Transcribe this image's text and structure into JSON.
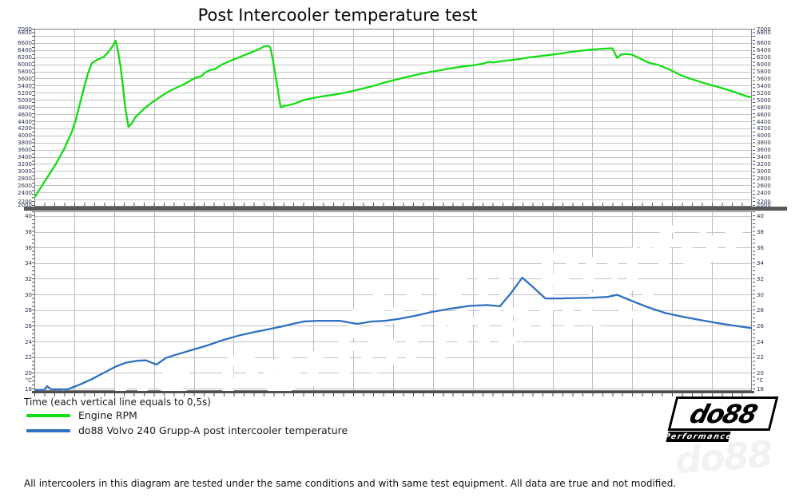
{
  "title": "Post Intercooler temperature test",
  "x_axis_note": "Time (each vertical line equals to 0,5s)",
  "footer_disclaimer": "All intercoolers in this diagram are tested under the same conditions and with same test equipment. All data are true and not modified.",
  "legend": [
    {
      "label": "Engine RPM",
      "color": "#12de12"
    },
    {
      "label": "do88 Volvo 240 Grupp-A post intercooler temperature",
      "color": "#2f70c2"
    }
  ],
  "logo": {
    "main": "do88",
    "sub": "Performance"
  },
  "watermark_text": "do88 Performance",
  "grid": {
    "x_major_divisions": 18,
    "x_minor_per_major": 4,
    "seconds_per_division": "0,5"
  },
  "chart_data": [
    {
      "type": "line",
      "name": "Engine RPM",
      "ylim": [
        2000,
        7000
      ],
      "ytick_step": 200,
      "ytick_labels": [
        "6600",
        "6400",
        "6200",
        "6000",
        "5800",
        "5600",
        "5400",
        "5200",
        "5000",
        "4800",
        "4600",
        "4400",
        "4200",
        "4000",
        "3800",
        "3600",
        "3400",
        "3200",
        "3000",
        "2800",
        "2600",
        "2400"
      ],
      "ytick_edge_top": [
        "7000",
        "6800"
      ],
      "ytick_edge_bottom": [
        "2200",
        "2000"
      ],
      "x_range_seconds": [
        0,
        9
      ],
      "series": [
        {
          "name": "Engine RPM",
          "color": "#12de12",
          "points": [
            [
              0,
              2250
            ],
            [
              0.07,
              2500
            ],
            [
              0.17,
              2850
            ],
            [
              0.27,
              3200
            ],
            [
              0.37,
              3600
            ],
            [
              0.47,
              4100
            ],
            [
              0.52,
              4440
            ],
            [
              0.57,
              4880
            ],
            [
              0.62,
              5320
            ],
            [
              0.67,
              5730
            ],
            [
              0.72,
              6030
            ],
            [
              0.79,
              6130
            ],
            [
              0.87,
              6210
            ],
            [
              0.92,
              6320
            ],
            [
              0.97,
              6470
            ],
            [
              1.02,
              6660
            ],
            [
              1.05,
              6360
            ],
            [
              1.08,
              5950
            ],
            [
              1.11,
              5400
            ],
            [
              1.14,
              4800
            ],
            [
              1.18,
              4240
            ],
            [
              1.22,
              4330
            ],
            [
              1.27,
              4520
            ],
            [
              1.37,
              4740
            ],
            [
              1.47,
              4920
            ],
            [
              1.57,
              5070
            ],
            [
              1.67,
              5220
            ],
            [
              1.77,
              5330
            ],
            [
              1.87,
              5430
            ],
            [
              1.97,
              5560
            ],
            [
              2.03,
              5630
            ],
            [
              2.09,
              5660
            ],
            [
              2.15,
              5780
            ],
            [
              2.21,
              5840
            ],
            [
              2.27,
              5870
            ],
            [
              2.35,
              5990
            ],
            [
              2.45,
              6090
            ],
            [
              2.55,
              6180
            ],
            [
              2.65,
              6270
            ],
            [
              2.75,
              6360
            ],
            [
              2.83,
              6440
            ],
            [
              2.88,
              6500
            ],
            [
              2.93,
              6520
            ],
            [
              2.96,
              6480
            ],
            [
              2.99,
              6150
            ],
            [
              3.02,
              5750
            ],
            [
              3.05,
              5350
            ],
            [
              3.07,
              5050
            ],
            [
              3.09,
              4790
            ],
            [
              3.13,
              4830
            ],
            [
              3.19,
              4850
            ],
            [
              3.27,
              4900
            ],
            [
              3.37,
              4990
            ],
            [
              3.49,
              5050
            ],
            [
              3.62,
              5100
            ],
            [
              3.77,
              5150
            ],
            [
              3.92,
              5210
            ],
            [
              4.07,
              5290
            ],
            [
              4.23,
              5380
            ],
            [
              4.38,
              5480
            ],
            [
              4.5,
              5550
            ],
            [
              4.63,
              5620
            ],
            [
              4.78,
              5700
            ],
            [
              4.93,
              5770
            ],
            [
              5.08,
              5830
            ],
            [
              5.23,
              5890
            ],
            [
              5.38,
              5940
            ],
            [
              5.53,
              5980
            ],
            [
              5.63,
              6020
            ],
            [
              5.7,
              6070
            ],
            [
              5.76,
              6050
            ],
            [
              5.86,
              6090
            ],
            [
              6.03,
              6130
            ],
            [
              6.2,
              6190
            ],
            [
              6.38,
              6240
            ],
            [
              6.56,
              6290
            ],
            [
              6.74,
              6350
            ],
            [
              6.92,
              6400
            ],
            [
              7.09,
              6430
            ],
            [
              7.25,
              6450
            ],
            [
              7.31,
              6180
            ],
            [
              7.36,
              6280
            ],
            [
              7.44,
              6290
            ],
            [
              7.5,
              6270
            ],
            [
              7.59,
              6170
            ],
            [
              7.71,
              6040
            ],
            [
              7.83,
              5980
            ],
            [
              7.97,
              5850
            ],
            [
              8.11,
              5690
            ],
            [
              8.25,
              5580
            ],
            [
              8.39,
              5480
            ],
            [
              8.52,
              5400
            ],
            [
              8.64,
              5320
            ],
            [
              8.76,
              5240
            ],
            [
              8.87,
              5150
            ],
            [
              8.95,
              5090
            ],
            [
              9,
              5080
            ]
          ]
        }
      ]
    },
    {
      "type": "line",
      "name": "do88 Volvo 240 Grupp-A post intercooler temperature",
      "ylim": [
        17.7,
        40.6
      ],
      "ytick_step": 2,
      "ytick_labels": [
        "40",
        "38",
        "36",
        "34",
        "32",
        "30",
        "28",
        "26",
        "24",
        "22",
        "20",
        "18"
      ],
      "y_unit_label": "°C",
      "x_range_seconds": [
        0,
        9
      ],
      "series": [
        {
          "name": "do88 Volvo 240 Grupp-A post intercooler temperature",
          "color": "#2f70c2",
          "points": [
            [
              0,
              17.8
            ],
            [
              0.12,
              17.8
            ],
            [
              0.16,
              18.3
            ],
            [
              0.21,
              17.9
            ],
            [
              0.42,
              17.9
            ],
            [
              0.57,
              18.5
            ],
            [
              0.72,
              19.2
            ],
            [
              0.87,
              20
            ],
            [
              1.02,
              20.8
            ],
            [
              1.15,
              21.3
            ],
            [
              1.29,
              21.55
            ],
            [
              1.4,
              21.6
            ],
            [
              1.53,
              21.05
            ],
            [
              1.65,
              21.9
            ],
            [
              1.77,
              22.3
            ],
            [
              1.97,
              22.9
            ],
            [
              2.17,
              23.5
            ],
            [
              2.37,
              24.2
            ],
            [
              2.58,
              24.8
            ],
            [
              2.76,
              25.2
            ],
            [
              2.93,
              25.55
            ],
            [
              3.1,
              25.9
            ],
            [
              3.24,
              26.25
            ],
            [
              3.38,
              26.55
            ],
            [
              3.56,
              26.65
            ],
            [
              3.83,
              26.65
            ],
            [
              4.05,
              26.25
            ],
            [
              4.23,
              26.55
            ],
            [
              4.4,
              26.65
            ],
            [
              4.58,
              26.9
            ],
            [
              4.78,
              27.3
            ],
            [
              5,
              27.8
            ],
            [
              5.23,
              28.2
            ],
            [
              5.46,
              28.55
            ],
            [
              5.68,
              28.65
            ],
            [
              5.84,
              28.5
            ],
            [
              5.98,
              30.2
            ],
            [
              6.12,
              32.15
            ],
            [
              6.26,
              30.9
            ],
            [
              6.41,
              29.5
            ],
            [
              6.58,
              29.5
            ],
            [
              6.79,
              29.55
            ],
            [
              7.01,
              29.6
            ],
            [
              7.19,
              29.7
            ],
            [
              7.31,
              29.95
            ],
            [
              7.49,
              29.2
            ],
            [
              7.69,
              28.4
            ],
            [
              7.91,
              27.65
            ],
            [
              8.12,
              27.2
            ],
            [
              8.35,
              26.75
            ],
            [
              8.57,
              26.35
            ],
            [
              8.79,
              26
            ],
            [
              9,
              25.7
            ]
          ]
        }
      ]
    }
  ]
}
